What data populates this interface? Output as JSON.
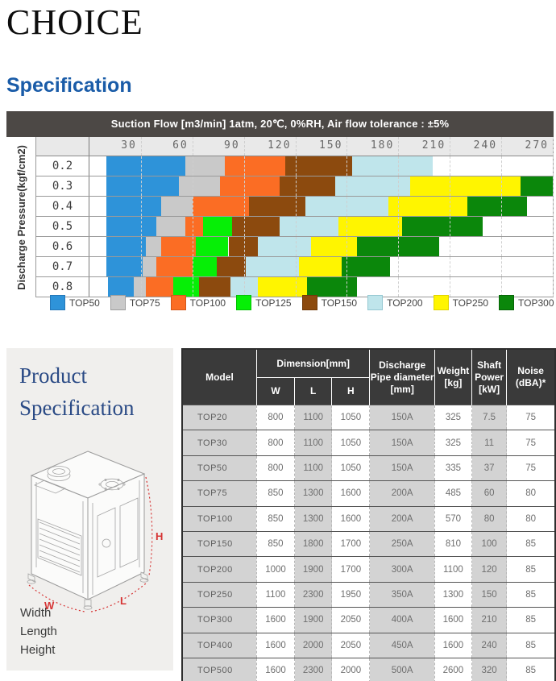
{
  "page": {
    "title": "CHOICE",
    "section_heading": "Specification"
  },
  "chart_data": {
    "type": "bar",
    "variant": "horizontal-stacked-range",
    "title": "Suction Flow [m3/min] 1atm, 20℃, 0%RH, Air flow tolerance : ±5%",
    "ylabel": "Discharge Pressure(kgf/cm2)",
    "xlabel": "",
    "xlim": [
      0,
      270
    ],
    "x_ticks": [
      30,
      60,
      90,
      120,
      150,
      180,
      210,
      240,
      270
    ],
    "grid": "dashed-vertical",
    "legend_position": "bottom",
    "legend": [
      {
        "name": "TOP50",
        "color": "#2e93d9",
        "border": "#2477b8"
      },
      {
        "name": "TOP75",
        "color": "#c9c9c9",
        "border": "#9e9e9e"
      },
      {
        "name": "TOP100",
        "color": "#fb6d24",
        "border": "#d4581a"
      },
      {
        "name": "TOP125",
        "color": "#06ef06",
        "border": "#05c205"
      },
      {
        "name": "TOP150",
        "color": "#8c4a0e",
        "border": "#70390a"
      },
      {
        "name": "TOP200",
        "color": "#bfe5eb",
        "border": "#96c8d2"
      },
      {
        "name": "TOP250",
        "color": "#fff500",
        "border": "#e0d400"
      },
      {
        "name": "TOP300",
        "color": "#0b870b",
        "border": "#086508"
      }
    ],
    "rows": [
      {
        "pressure": "0.2",
        "segments": [
          {
            "model": "TOP50",
            "from": 10,
            "to": 56
          },
          {
            "model": "TOP75",
            "from": 56,
            "to": 79
          },
          {
            "model": "TOP100",
            "from": 79,
            "to": 114
          },
          {
            "model": "TOP150",
            "from": 114,
            "to": 153
          },
          {
            "model": "TOP200",
            "from": 153,
            "to": 200
          }
        ]
      },
      {
        "pressure": "0.3",
        "segments": [
          {
            "model": "TOP50",
            "from": 10,
            "to": 52
          },
          {
            "model": "TOP75",
            "from": 52,
            "to": 76
          },
          {
            "model": "TOP100",
            "from": 76,
            "to": 111
          },
          {
            "model": "TOP150",
            "from": 111,
            "to": 143
          },
          {
            "model": "TOP200",
            "from": 143,
            "to": 187
          },
          {
            "model": "TOP250",
            "from": 187,
            "to": 251
          },
          {
            "model": "TOP300",
            "from": 251,
            "to": 270
          }
        ]
      },
      {
        "pressure": "0.4",
        "segments": [
          {
            "model": "TOP50",
            "from": 10,
            "to": 42
          },
          {
            "model": "TOP75",
            "from": 42,
            "to": 60
          },
          {
            "model": "TOP100",
            "from": 60,
            "to": 93
          },
          {
            "model": "TOP150",
            "from": 93,
            "to": 126
          },
          {
            "model": "TOP200",
            "from": 126,
            "to": 174
          },
          {
            "model": "TOP250",
            "from": 174,
            "to": 220
          },
          {
            "model": "TOP300",
            "from": 220,
            "to": 255
          }
        ]
      },
      {
        "pressure": "0.5",
        "segments": [
          {
            "model": "TOP50",
            "from": 10,
            "to": 39
          },
          {
            "model": "TOP75",
            "from": 39,
            "to": 56
          },
          {
            "model": "TOP100",
            "from": 56,
            "to": 66
          },
          {
            "model": "TOP125",
            "from": 66,
            "to": 83
          },
          {
            "model": "TOP150",
            "from": 83,
            "to": 111
          },
          {
            "model": "TOP200",
            "from": 111,
            "to": 145
          },
          {
            "model": "TOP250",
            "from": 145,
            "to": 182
          },
          {
            "model": "TOP300",
            "from": 182,
            "to": 229
          }
        ]
      },
      {
        "pressure": "0.6",
        "segments": [
          {
            "model": "TOP50",
            "from": 10,
            "to": 33
          },
          {
            "model": "TOP75",
            "from": 33,
            "to": 42
          },
          {
            "model": "TOP100",
            "from": 42,
            "to": 62
          },
          {
            "model": "TOP125",
            "from": 62,
            "to": 81
          },
          {
            "model": "TOP150",
            "from": 81,
            "to": 98
          },
          {
            "model": "TOP200",
            "from": 98,
            "to": 129
          },
          {
            "model": "TOP250",
            "from": 129,
            "to": 156
          },
          {
            "model": "TOP300",
            "from": 156,
            "to": 204
          }
        ]
      },
      {
        "pressure": "0.7",
        "segments": [
          {
            "model": "TOP50",
            "from": 10,
            "to": 31
          },
          {
            "model": "TOP75",
            "from": 31,
            "to": 39
          },
          {
            "model": "TOP100",
            "from": 39,
            "to": 60
          },
          {
            "model": "TOP125",
            "from": 60,
            "to": 74
          },
          {
            "model": "TOP150",
            "from": 74,
            "to": 91
          },
          {
            "model": "TOP200",
            "from": 91,
            "to": 122
          },
          {
            "model": "TOP250",
            "from": 122,
            "to": 147
          },
          {
            "model": "TOP300",
            "from": 147,
            "to": 175
          }
        ]
      },
      {
        "pressure": "0.8",
        "segments": [
          {
            "model": "TOP50",
            "from": 11,
            "to": 26
          },
          {
            "model": "TOP75",
            "from": 26,
            "to": 33
          },
          {
            "model": "TOP100",
            "from": 33,
            "to": 49
          },
          {
            "model": "TOP125",
            "from": 49,
            "to": 64
          },
          {
            "model": "TOP150",
            "from": 64,
            "to": 82
          },
          {
            "model": "TOP200",
            "from": 82,
            "to": 98
          },
          {
            "model": "TOP250",
            "from": 98,
            "to": 127
          },
          {
            "model": "TOP300",
            "from": 127,
            "to": 156
          }
        ]
      }
    ]
  },
  "product_panel": {
    "title_lines": [
      "Product",
      "Specification"
    ],
    "dim_labels": {
      "w": "W",
      "l": "L",
      "h": "H"
    },
    "footer_lines": [
      "Width",
      "Length",
      "Height"
    ],
    "accent_color": "#d63434"
  },
  "spec_table": {
    "headers": {
      "model": "Model",
      "dimension": "Dimension[mm]",
      "w": "W",
      "l": "L",
      "h": "H",
      "pipe": "Discharge\nPipe diameter\n[mm]",
      "weight": "Weight\n[kg]",
      "power": "Shaft\nPower\n[kW]",
      "noise": "Noise\n(dBA)*"
    },
    "rows": [
      {
        "model": "TOP20",
        "w": "800",
        "l": "1100",
        "h": "1050",
        "pipe": "150A",
        "weight": "325",
        "power": "7.5",
        "noise": "75"
      },
      {
        "model": "TOP30",
        "w": "800",
        "l": "1100",
        "h": "1050",
        "pipe": "150A",
        "weight": "325",
        "power": "11",
        "noise": "75"
      },
      {
        "model": "TOP50",
        "w": "800",
        "l": "1100",
        "h": "1050",
        "pipe": "150A",
        "weight": "335",
        "power": "37",
        "noise": "75"
      },
      {
        "model": "TOP75",
        "w": "850",
        "l": "1300",
        "h": "1600",
        "pipe": "200A",
        "weight": "485",
        "power": "60",
        "noise": "80"
      },
      {
        "model": "TOP100",
        "w": "850",
        "l": "1300",
        "h": "1600",
        "pipe": "200A",
        "weight": "570",
        "power": "80",
        "noise": "80"
      },
      {
        "model": "TOP150",
        "w": "850",
        "l": "1800",
        "h": "1700",
        "pipe": "250A",
        "weight": "810",
        "power": "100",
        "noise": "85"
      },
      {
        "model": "TOP200",
        "w": "1000",
        "l": "1900",
        "h": "1700",
        "pipe": "300A",
        "weight": "1100",
        "power": "120",
        "noise": "85"
      },
      {
        "model": "TOP250",
        "w": "1100",
        "l": "2300",
        "h": "1950",
        "pipe": "350A",
        "weight": "1300",
        "power": "150",
        "noise": "85"
      },
      {
        "model": "TOP300",
        "w": "1600",
        "l": "1900",
        "h": "2050",
        "pipe": "400A",
        "weight": "1600",
        "power": "210",
        "noise": "85"
      },
      {
        "model": "TOP400",
        "w": "1600",
        "l": "2000",
        "h": "2050",
        "pipe": "450A",
        "weight": "1600",
        "power": "240",
        "noise": "85"
      },
      {
        "model": "TOP500",
        "w": "1600",
        "l": "2300",
        "h": "2000",
        "pipe": "500A",
        "weight": "2600",
        "power": "320",
        "noise": "85"
      }
    ]
  }
}
